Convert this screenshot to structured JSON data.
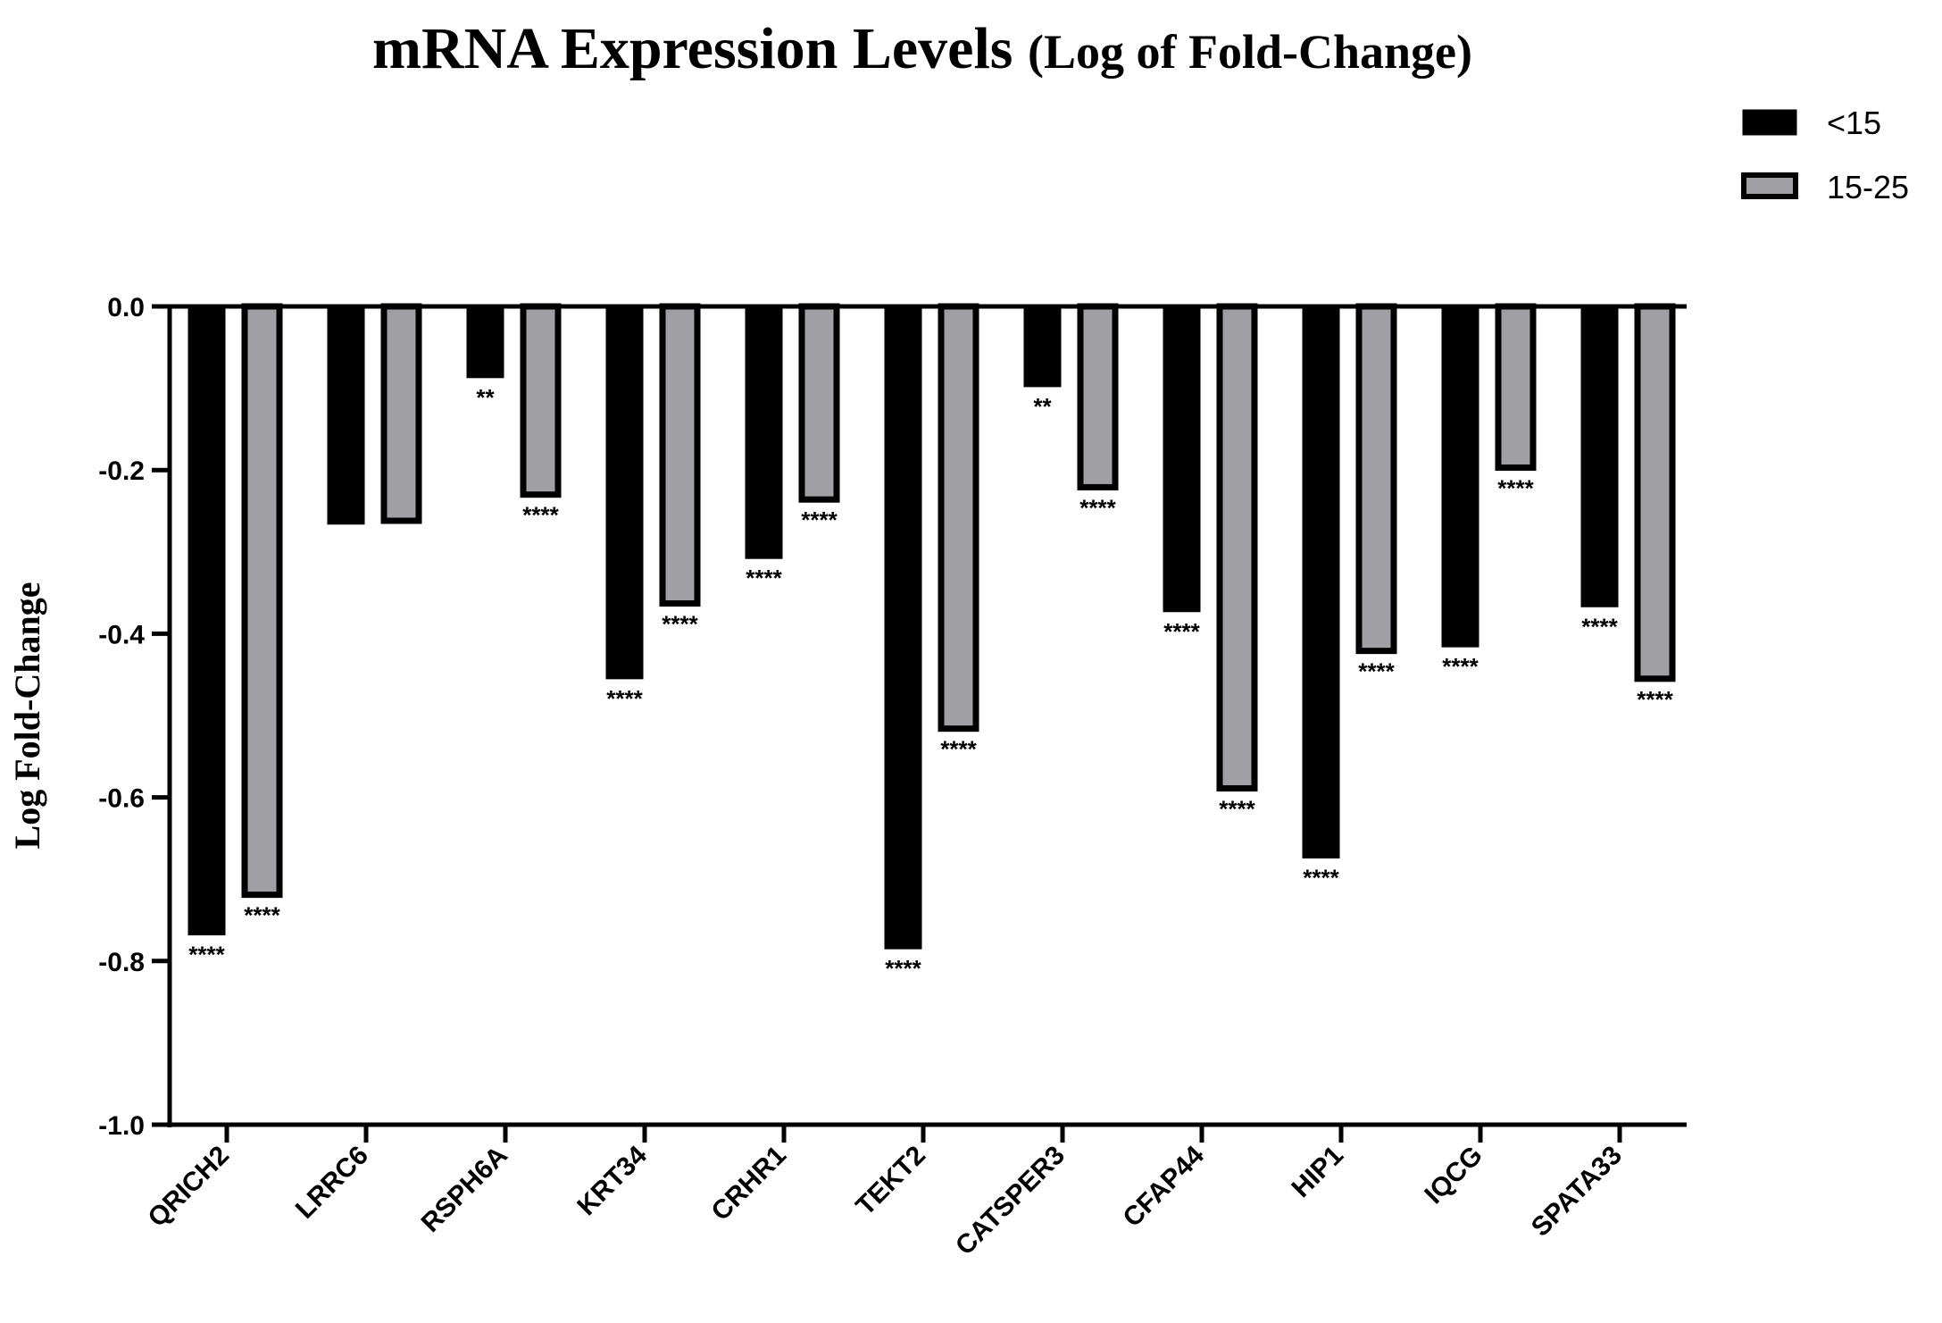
{
  "chart_data": {
    "type": "bar",
    "title_main": "mRNA Expression Levels",
    "title_paren": "(Log of Fold-Change)",
    "xlabel": "",
    "ylabel": "Log Fold-Change",
    "ylim": [
      -1.0,
      0.0
    ],
    "yticks": [
      "0.0",
      "-0.2",
      "-0.4",
      "-0.6",
      "-0.8",
      "-1.0"
    ],
    "grid": false,
    "legend_placement": "top-right",
    "categories": [
      "QRICH2",
      "LRRC6",
      "RSPH6A",
      "KRT34",
      "CRHR1",
      "TEKT2",
      "CATSPER3",
      "CFAP44",
      "HIP1",
      "IQCG",
      "SPATA33"
    ],
    "series": [
      {
        "name": "<15",
        "color": "#000000",
        "values": [
          -0.767,
          -0.265,
          -0.086,
          -0.454,
          -0.307,
          -0.784,
          -0.097,
          -0.372,
          -0.673,
          -0.415,
          -0.366
        ],
        "significance": [
          "****",
          "",
          "**",
          "****",
          "****",
          "****",
          "**",
          "****",
          "****",
          "****",
          "****"
        ]
      },
      {
        "name": "15-25",
        "color": "#a0a0a4",
        "values": [
          -0.719,
          -0.262,
          -0.23,
          -0.363,
          -0.236,
          -0.516,
          -0.221,
          -0.589,
          -0.421,
          -0.197,
          -0.455
        ],
        "significance": [
          "****",
          "",
          "****",
          "****",
          "****",
          "****",
          "****",
          "****",
          "****",
          "****",
          "****"
        ]
      }
    ]
  }
}
